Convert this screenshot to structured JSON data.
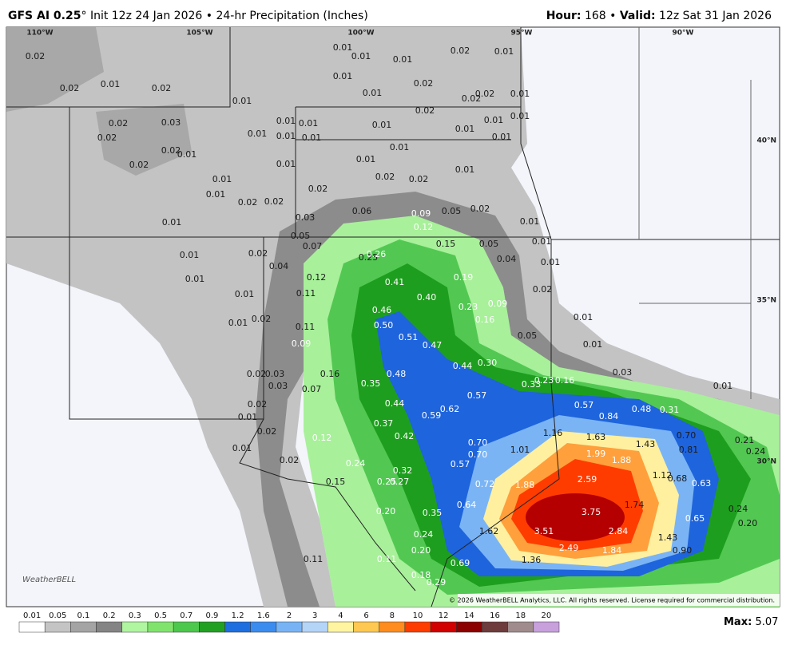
{
  "header": {
    "model": "GFS AI 0.25",
    "degree": "°",
    "init": "Init 12z 24 Jan 2026",
    "separator": "•",
    "product": "24-hr Precipitation (Inches)",
    "hour_label": "Hour:",
    "hour": "168",
    "valid_label": "Valid:",
    "valid": "12z Sat 31 Jan 2026"
  },
  "map": {
    "longitudes": [
      "110°W",
      "105°W",
      "100°W",
      "95°W",
      "90°W"
    ],
    "latitudes": [
      "40°N",
      "35°N",
      "30°N"
    ],
    "precip_labels": [
      "0.02",
      "0.01",
      "0.01",
      "0.01",
      "0.02",
      "0.01",
      "0.02",
      "0.01",
      "0.02",
      "0.01",
      "0.02",
      "0.01",
      "0.02",
      "0.02",
      "0.01",
      "0.01",
      "0.02",
      "0.01",
      "0.02",
      "0.03",
      "0.01",
      "0.01",
      "0.01",
      "0.01",
      "0.01",
      "0.02",
      "0.01",
      "0.01",
      "0.01",
      "0.01",
      "0.02",
      "0.01",
      "0.01",
      "0.02",
      "0.01",
      "0.01",
      "0.01",
      "0.01",
      "0.02",
      "0.02",
      "0.01",
      "0.02",
      "0.02",
      "0.02",
      "0.06",
      "0.09",
      "0.05",
      "0.02",
      "0.01",
      "0.03",
      "0.12",
      "0.01",
      "0.05",
      "0.07",
      "0.15",
      "0.05",
      "0.01",
      "0.01",
      "0.02",
      "0.25",
      "0.26",
      "0.04",
      "0.01",
      "0.04",
      "0.12",
      "0.19",
      "0.01",
      "0.41",
      "0.40",
      "0.02",
      "0.01",
      "0.11",
      "0.23",
      "0.09",
      "0.46",
      "0.01",
      "0.02",
      "0.50",
      "0.16",
      "0.01",
      "0.11",
      "0.51",
      "0.47",
      "0.09",
      "0.05",
      "0.01",
      "0.44",
      "0.30",
      "0.02",
      "0.03",
      "0.16",
      "0.48",
      "0.03",
      "0.03",
      "0.35",
      "0.33",
      "0.23",
      "0.16",
      "0.01",
      "0.07",
      "0.57",
      "0.02",
      "0.44",
      "0.57",
      "0.48",
      "0.31",
      "0.62",
      "0.59",
      "0.84",
      "0.01",
      "0.37",
      "0.02",
      "0.12",
      "0.42",
      "1.16",
      "1.63",
      "1.43",
      "0.70",
      "0.70",
      "0.21",
      "0.01",
      "1.01",
      "0.70",
      "1.99",
      "0.81",
      "0.24",
      "1.88",
      "0.02",
      "0.24",
      "0.57",
      "0.32",
      "0.15",
      "0.25",
      "0.27",
      "1.88",
      "2.59",
      "1.12",
      "0.68",
      "0.72",
      "0.63",
      "0.64",
      "1.74",
      "3.75",
      "0.24",
      "0.20",
      "0.35",
      "0.65",
      "0.20",
      "1.62",
      "3.51",
      "2.84",
      "0.24",
      "1.43",
      "2.49",
      "1.84",
      "0.90",
      "0.20",
      "0.11",
      "0.11",
      "1.36",
      "0.69",
      "0.18",
      "0.29"
    ],
    "logo": "WeatherBELL",
    "copyright": "© 2026 WeatherBELL Analytics, LLC. All rights reserved. License required for commercial distribution."
  },
  "colorbar": {
    "ticks": [
      0.01,
      0.05,
      0.1,
      0.2,
      0.3,
      0.5,
      0.7,
      0.9,
      1.2,
      1.6,
      2,
      3,
      4,
      6,
      8,
      10,
      12,
      14,
      16,
      18,
      20
    ],
    "colors": [
      "#ffffff",
      "#c4c4c4",
      "#a4a4a4",
      "#848484",
      "#b0f5a0",
      "#80e46c",
      "#4cc84c",
      "#22a022",
      "#1e6ee0",
      "#3c8cf0",
      "#78b4f5",
      "#b4d4f8",
      "#fff5a0",
      "#ffc850",
      "#ff8c1e",
      "#ff3c00",
      "#d20000",
      "#8c0000",
      "#6e3c3c",
      "#a08c8c",
      "#c8a0dc"
    ]
  },
  "footer": {
    "max_label": "Max:",
    "max": "5.07"
  }
}
